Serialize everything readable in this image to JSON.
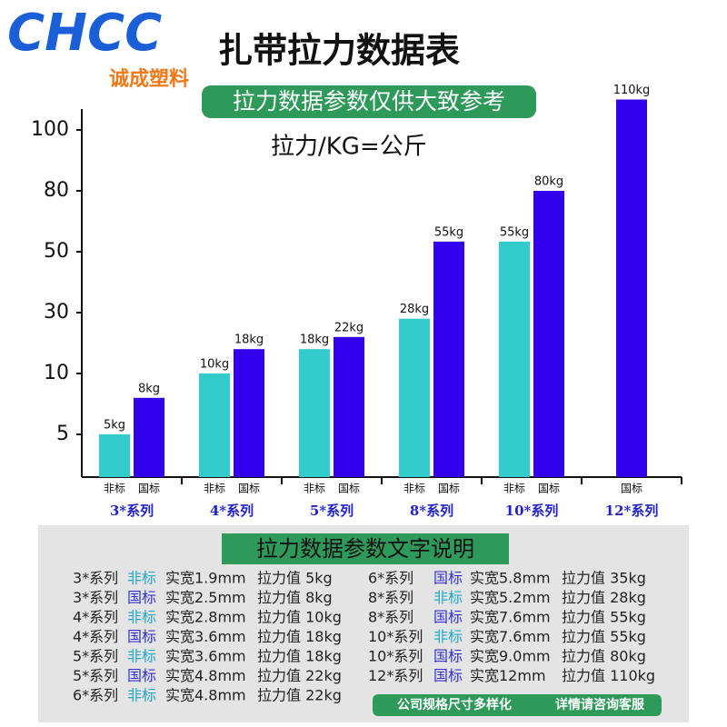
{
  "logo": {
    "text": "CHCC",
    "subtitle": "诚成塑料"
  },
  "chart_data": {
    "type": "bar",
    "title": "扎带拉力数据表",
    "subtitle": "拉力数据参数仅供大致参考",
    "annotation": "拉力/KG=公斤",
    "categories": [
      "3*系列",
      "4*系列",
      "5*系列",
      "8*系列",
      "10*系列",
      "12*系列"
    ],
    "series": [
      {
        "name": "非标",
        "color": "#33cccc",
        "values": [
          5,
          10,
          18,
          28,
          55,
          null
        ],
        "value_labels": [
          "5kg",
          "10kg",
          "18kg",
          "28kg",
          "55kg",
          null
        ]
      },
      {
        "name": "国标",
        "color": "#3300ee",
        "values": [
          8,
          18,
          22,
          55,
          80,
          110
        ],
        "value_labels": [
          "8kg",
          "18kg",
          "22kg",
          "55kg",
          "80kg",
          "110kg"
        ]
      }
    ],
    "ylim": [
      0,
      110
    ],
    "yticks": [
      5,
      10,
      30,
      50,
      80,
      100
    ]
  },
  "notes": {
    "title": "拉力数据参数文字说明",
    "left": [
      [
        "3*系列",
        "非标",
        "实宽1.9mm",
        "拉力值 5kg"
      ],
      [
        "3*系列",
        "国标",
        "实宽2.5mm",
        "拉力值 8kg"
      ],
      [
        "4*系列",
        "非标",
        "实宽2.8mm",
        "拉力值 10kg"
      ],
      [
        "4*系列",
        "国标",
        "实宽3.6mm",
        "拉力值 18kg"
      ],
      [
        "5*系列",
        "非标",
        "实宽3.6mm",
        "拉力值 18kg"
      ],
      [
        "5*系列",
        "国标",
        "实宽4.8mm",
        "拉力值 22kg"
      ],
      [
        "6*系列",
        "非标",
        "实宽4.8mm",
        "拉力值 22kg"
      ]
    ],
    "right": [
      [
        "6*系列",
        "国标",
        "实宽5.8mm",
        "拉力值 35kg"
      ],
      [
        "8*系列",
        "非标",
        "实宽5.2mm",
        "拉力值 28kg"
      ],
      [
        "8*系列",
        "国标",
        "实宽7.6mm",
        "拉力值 55kg"
      ],
      [
        "10*系列",
        "非标",
        "实宽7.6mm",
        "拉力值 55kg"
      ],
      [
        "10*系列",
        "国标",
        "实宽9.0mm",
        "拉力值 80kg"
      ],
      [
        "12*系列",
        "国标",
        "实宽12mm",
        "拉力值 110kg"
      ]
    ],
    "footer": [
      "公司规格尺寸多样化",
      "详情请咨询客服"
    ]
  }
}
